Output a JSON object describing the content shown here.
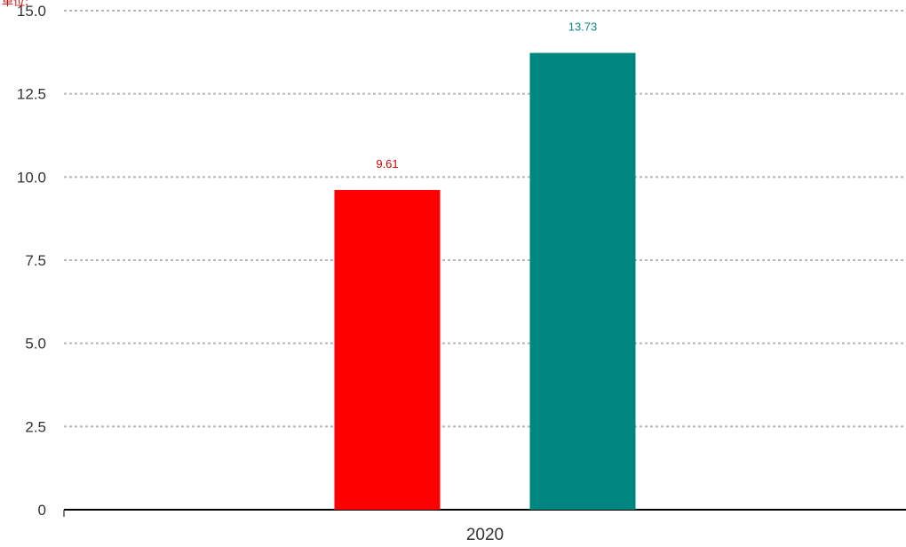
{
  "chart_data": {
    "type": "bar",
    "unit_label": "单位:",
    "categories": [
      "2020"
    ],
    "series": [
      {
        "values": [
          9.61
        ],
        "color": "#ff0000",
        "label_color": "#d10000",
        "label": "9.61"
      },
      {
        "values": [
          13.73
        ],
        "color": "#00857f",
        "label_color": "#138a8a",
        "label": "13.73"
      }
    ],
    "ylim": [
      0,
      15
    ],
    "yticks": [
      "0",
      "2.5",
      "5.0",
      "7.5",
      "10.0",
      "12.5",
      "15.0"
    ],
    "grid": true,
    "legend": "none",
    "colors": {
      "unit_label": "#d40000",
      "axis": "#000000",
      "grid": "#b5b5b5",
      "tick_text": "#333333"
    }
  }
}
